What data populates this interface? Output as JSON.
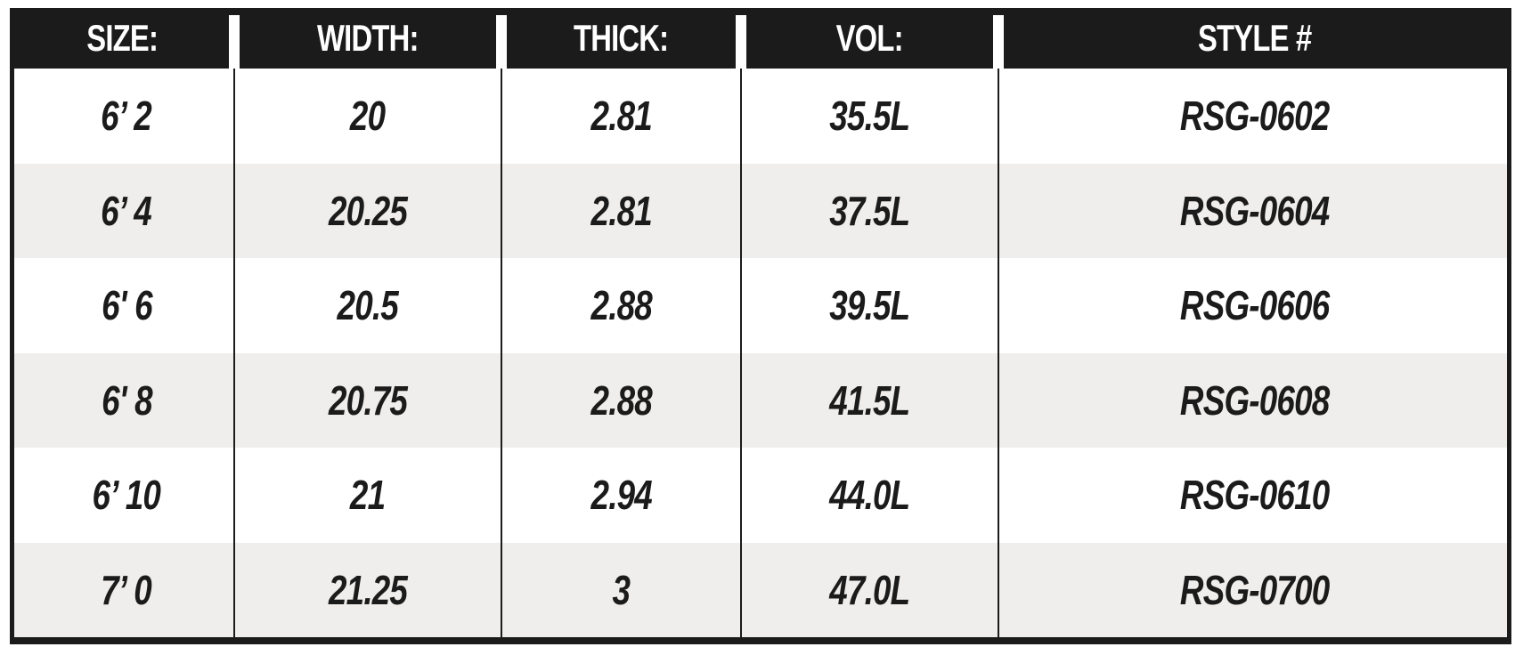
{
  "table": {
    "header": [
      "SIZE:",
      "WIDTH:",
      "THICK:",
      "VOL:",
      "STYLE #"
    ],
    "rows": [
      [
        "6’ 2",
        "20",
        "2.81",
        "35.5L",
        "RSG-0602"
      ],
      [
        "6’ 4",
        "20.25",
        "2.81",
        "37.5L",
        "RSG-0604"
      ],
      [
        "6' 6",
        "20.5",
        "2.88",
        "39.5L",
        "RSG-0606"
      ],
      [
        "6' 8",
        "20.75",
        "2.88",
        "41.5L",
        "RSG-0608"
      ],
      [
        "6’ 10",
        "21",
        "2.94",
        "44.0L",
        "RSG-0610"
      ],
      [
        "7’ 0",
        "21.25",
        "3",
        "47.0L",
        "RSG-0700"
      ]
    ]
  }
}
